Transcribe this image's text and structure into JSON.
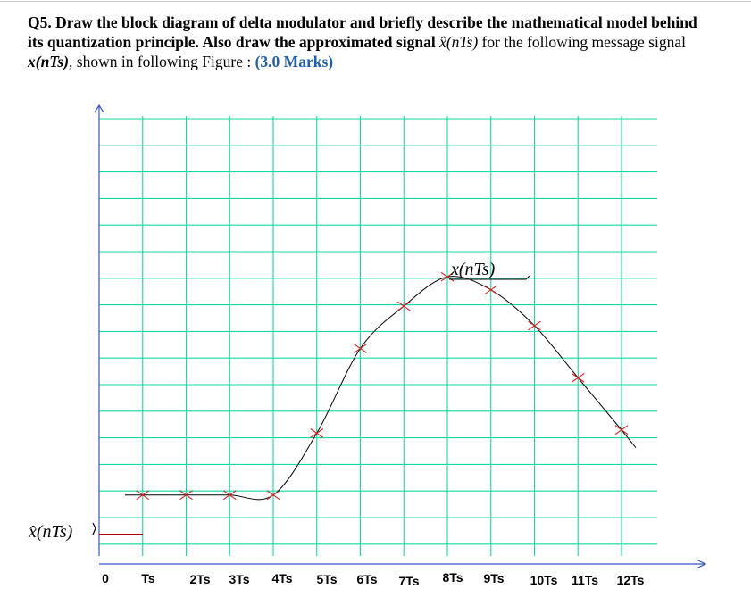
{
  "question": {
    "number": "Q5.",
    "text_bold": "Draw the block diagram of delta modulator and briefly describe the mathematical model behind its quantization principle. Also draw the approximated signal",
    "xhat_symbol": "x̂(nTs)",
    "for_word": "for",
    "text_normal": "the following message signal",
    "x_symbol": "x(nTs)",
    "tail": ", shown in following  Figure :",
    "marks": "(3.0 Marks)"
  },
  "figure": {
    "curve_label": "x(nTs)",
    "approx_label": "x̂(nTs)",
    "colors": {
      "grid": "#14d9a2",
      "axis": "#3a55c8",
      "curve": "#000000",
      "marker": "#d02020",
      "approx": "#b00000"
    },
    "x_ticks": [
      "0",
      "Ts",
      "2Ts",
      "3Ts",
      "4Ts",
      "5Ts",
      "6Ts",
      "7Ts",
      "8Ts",
      "9Ts",
      "10Ts",
      "11Ts",
      "12Ts"
    ]
  },
  "chart_data": {
    "type": "line",
    "title": "",
    "xlabel": "",
    "ylabel": "",
    "x": [
      "Ts",
      "2Ts",
      "3Ts",
      "4Ts",
      "5Ts",
      "6Ts",
      "7Ts",
      "8Ts",
      "9Ts",
      "10Ts",
      "11Ts",
      "12Ts"
    ],
    "series": [
      {
        "name": "x(nTs)",
        "values": [
          0.5,
          0.5,
          0.5,
          0.5,
          2.4,
          5.0,
          6.3,
          7.2,
          6.8,
          5.7,
          4.1,
          2.5
        ]
      }
    ],
    "approx_initial": 0,
    "ylim": [
      -0.5,
      14
    ],
    "grid": true
  }
}
